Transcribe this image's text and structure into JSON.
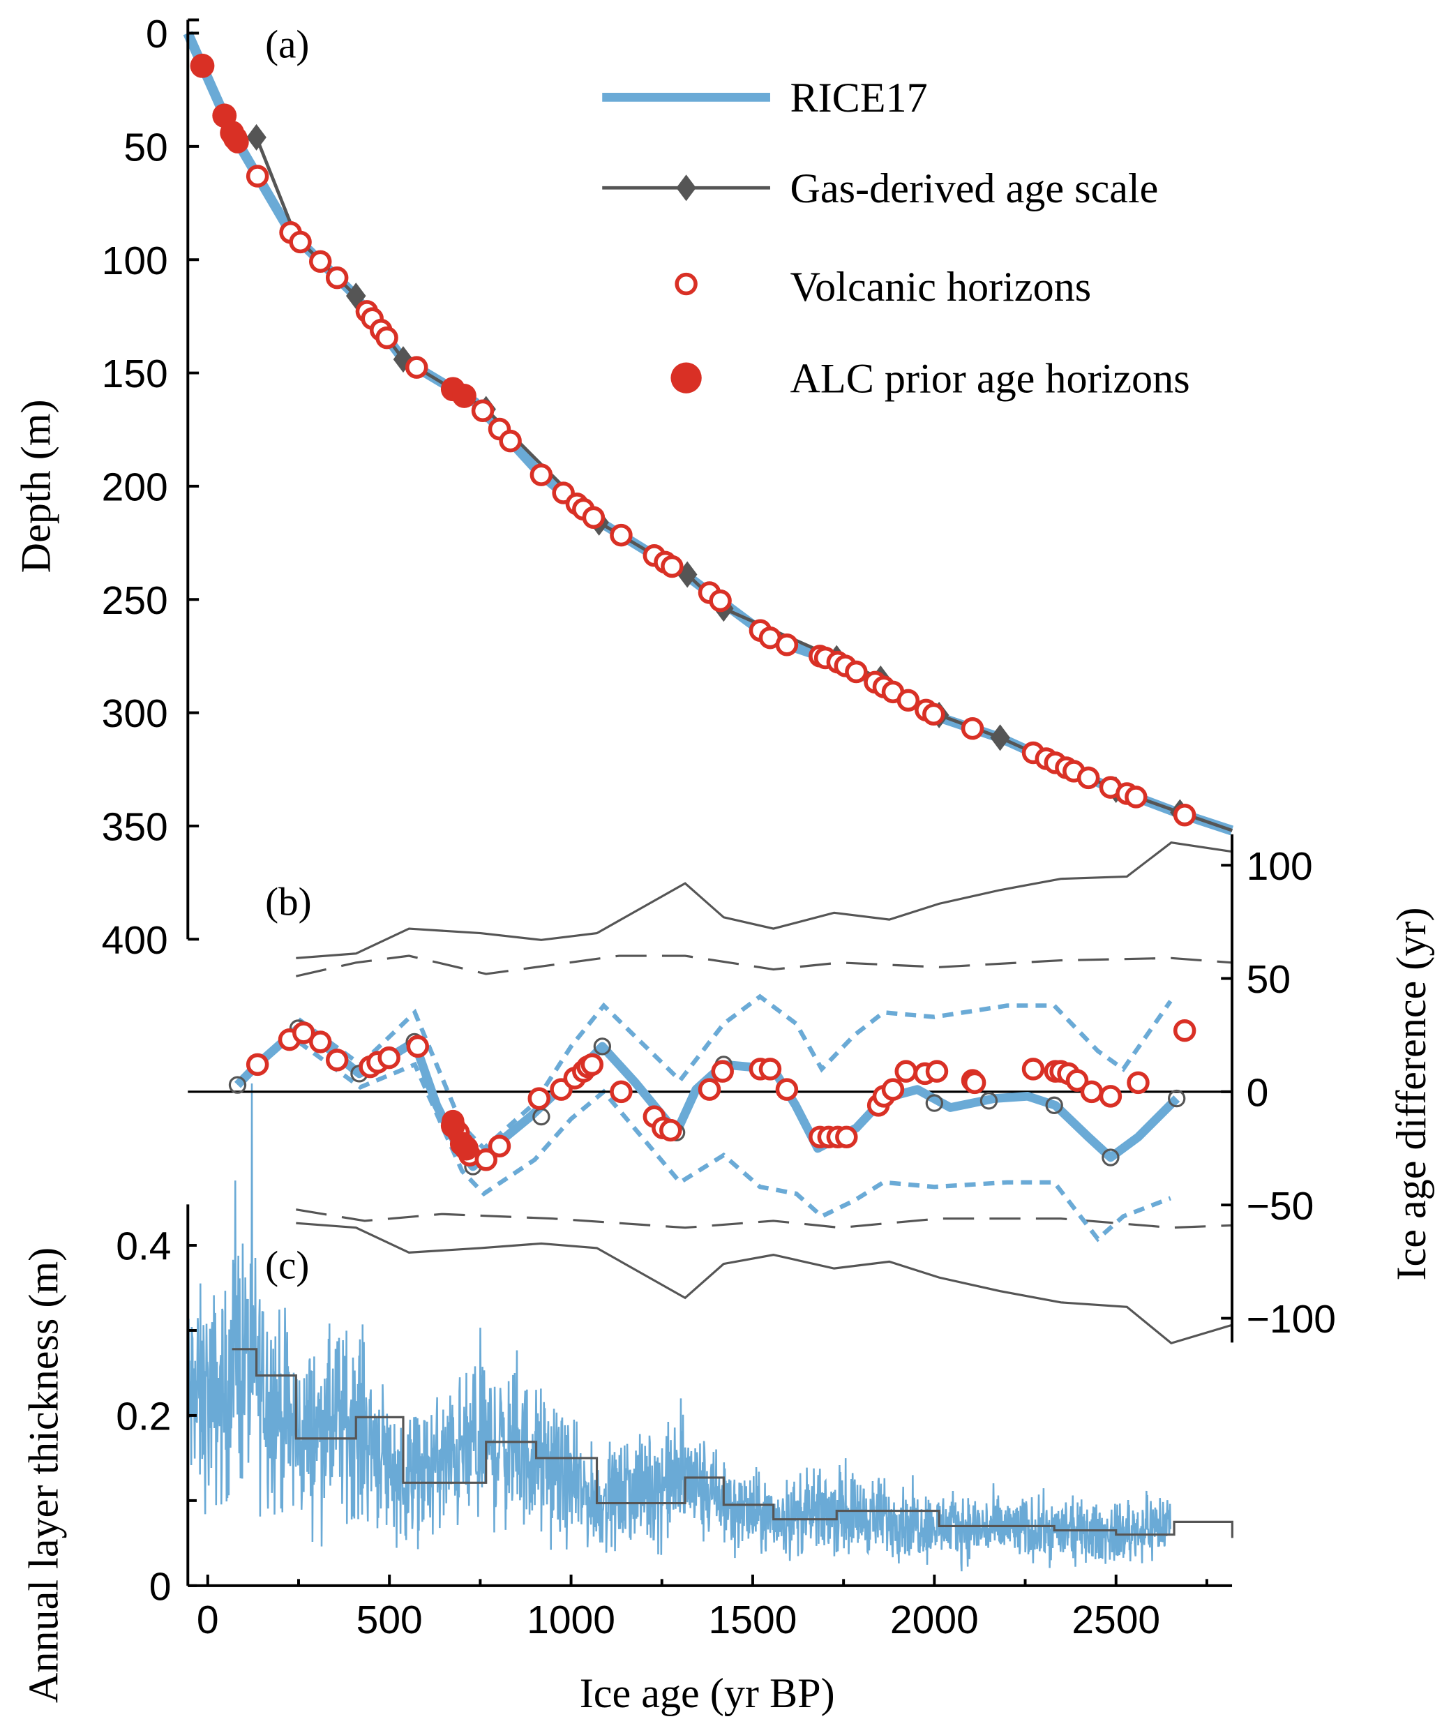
{
  "colors": {
    "rice17": "#6aaad6",
    "gas": "#555555",
    "volcanic": "#d93025",
    "alc": "#d93025",
    "axis": "#000000"
  },
  "chart_data": [
    {
      "panel": "(a)",
      "type": "line",
      "xlabel": "Ice age (yr BP)",
      "ylabel": "Depth (m)",
      "xlim": [
        -55,
        2820
      ],
      "ylim": [
        400,
        0
      ],
      "yticks": [
        0,
        50,
        100,
        150,
        200,
        250,
        300,
        350,
        400
      ],
      "xticks": [
        0,
        500,
        1000,
        1500,
        2000,
        2500
      ],
      "legend": {
        "placement": "top-right",
        "entries": [
          "RICE17",
          "Gas-derived age scale",
          "Volcanic horizons",
          "ALC prior age horizons"
        ]
      },
      "rice17": {
        "age": [
          -55,
          67,
          228,
          401,
          538,
          736,
          918,
          1071,
          1314,
          1557,
          1740,
          2013,
          2180,
          2469,
          2667,
          2819
        ],
        "depth": [
          0,
          44,
          88,
          115,
          144,
          163,
          195,
          215,
          239,
          268,
          278,
          302,
          311,
          332,
          344,
          352
        ]
      },
      "gas_derived": {
        "age": [
          134,
          243,
          408,
          538,
          766,
          1077,
          1320,
          1420,
          1731,
          1852,
          2013,
          2181,
          2500,
          2676
        ],
        "depth": [
          46,
          90,
          116,
          144,
          166,
          216,
          239,
          254,
          276,
          285,
          301,
          311,
          334,
          344
        ]
      },
      "volcanic_ages": [
        67,
        82,
        137,
        228,
        255,
        310,
        356,
        438,
        453,
        477,
        493,
        575,
        757,
        803,
        833,
        918,
        979,
        1016,
        1034,
        1062,
        1138,
        1229,
        1259,
        1278,
        1381,
        1411,
        1521,
        1548,
        1594,
        1685,
        1700,
        1734,
        1755,
        1785,
        1837,
        1861,
        1886,
        1928,
        1977,
        1998,
        2105,
        2272,
        2308,
        2333,
        2363,
        2384,
        2424,
        2485,
        2530,
        2555,
        2689
      ],
      "alc_ages": [
        -15,
        46,
        67,
        76,
        675,
        706
      ]
    },
    {
      "panel": "(b)",
      "type": "line",
      "ylabel": "Ice age difference (yr)",
      "ylim": [
        -110,
        110
      ],
      "yticks": [
        100,
        50,
        0,
        -50,
        -100
      ],
      "difference": {
        "age": [
          82,
          143,
          249,
          325,
          417,
          477,
          569,
          630,
          690,
          730,
          782,
          888,
          1001,
          1086,
          1177,
          1290,
          1344,
          1420,
          1557,
          1618,
          1679,
          1785,
          1861,
          1953,
          2044,
          2165,
          2257,
          2333,
          2424,
          2485,
          2561,
          2667
        ],
        "diff": [
          3,
          13,
          28,
          20,
          8,
          13,
          22,
          -6,
          -25,
          -33,
          -25,
          -11,
          6,
          20,
          4,
          -18,
          1,
          12,
          10,
          -6,
          -25,
          -16,
          -3,
          1,
          -7,
          -3,
          -2,
          -6,
          -20,
          -29,
          -20,
          -3
        ]
      },
      "envelope_age": [
        250,
        420,
        570,
        700,
        760,
        900,
        1000,
        1090,
        1300,
        1420,
        1520,
        1620,
        1690,
        1780,
        1860,
        2000,
        2200,
        2330,
        2450,
        2520,
        2650
      ],
      "envelope_upper": [
        32,
        12,
        35,
        -15,
        -25,
        -5,
        20,
        38,
        5,
        30,
        42,
        30,
        10,
        25,
        35,
        33,
        38,
        38,
        18,
        10,
        40
      ],
      "envelope_lower": [
        22,
        2,
        12,
        -35,
        -45,
        -30,
        -12,
        0,
        -40,
        -28,
        -42,
        -45,
        -55,
        -48,
        -40,
        -42,
        -40,
        -40,
        -65,
        -55,
        -47
      ],
      "gas_bound_age": [
        243,
        408,
        554,
        751,
        918,
        1071,
        1314,
        1420,
        1557,
        1724,
        1876,
        2013,
        2180,
        2348,
        2530,
        2652,
        2819
      ],
      "gas_bound_upper": [
        59,
        61,
        72,
        70,
        67,
        70,
        92,
        77,
        72,
        79,
        76,
        83,
        89,
        94,
        95,
        110,
        106
      ],
      "gas_bound_lower": [
        -58,
        -60,
        -71,
        -69,
        -67,
        -69,
        -91,
        -76,
        -72,
        -78,
        -75,
        -82,
        -88,
        -93,
        -95,
        -111,
        -103
      ],
      "gas_dash_upper_age": [
        243,
        408,
        554,
        766,
        949,
        1132,
        1314,
        1557,
        1740,
        2013,
        2348,
        2652,
        2819
      ],
      "gas_dash_upper": [
        51,
        57,
        60,
        52,
        56,
        60,
        60,
        54,
        57,
        55,
        58,
        59,
        57
      ],
      "gas_dash_lower_age": [
        243,
        432,
        645,
        949,
        1314,
        1557,
        1740,
        2013,
        2348,
        2652,
        2819
      ],
      "gas_dash_lower": [
        -52,
        -57,
        -54,
        -56,
        -60,
        -57,
        -60,
        -56,
        -56,
        -60,
        -59
      ],
      "gas_points": {
        "age": [
          82,
          249,
          417,
          569,
          730,
          918,
          1086,
          1290,
          1420,
          1548,
          1861,
          2000,
          2150,
          2330,
          2485,
          2667
        ],
        "diff": [
          3,
          28,
          8,
          22,
          -33,
          -11,
          20,
          -18,
          12,
          10,
          -3,
          -5,
          -4,
          -6,
          -29,
          -3
        ]
      },
      "volcanic": {
        "age": [
          137,
          225,
          264,
          310,
          356,
          447,
          468,
          499,
          578,
          675,
          690,
          721,
          766,
          803,
          912,
          973,
          1010,
          1034,
          1046,
          1058,
          1138,
          1229,
          1253,
          1274,
          1381,
          1417,
          1521,
          1548,
          1594,
          1685,
          1709,
          1734,
          1758,
          1846,
          1861,
          1886,
          1922,
          1974,
          2007,
          2105,
          2111,
          2272,
          2333,
          2348,
          2369,
          2393,
          2433,
          2485,
          2561,
          2689
        ],
        "diff": [
          12,
          23,
          26,
          22,
          14,
          11,
          13,
          15,
          20,
          -13,
          -18,
          -28,
          -30,
          -24,
          -3,
          1,
          6,
          9,
          11,
          12,
          0,
          -11,
          -16,
          -17,
          1,
          9,
          10,
          10,
          1,
          -20,
          -20,
          -20,
          -20,
          -6,
          -2,
          1,
          9,
          8,
          9,
          5,
          4,
          10,
          9,
          9,
          8,
          5,
          0,
          -2,
          4,
          27
        ]
      },
      "alc": {
        "age": [
          675,
          700,
          712
        ],
        "diff": [
          -15,
          -23,
          -25
        ]
      }
    },
    {
      "panel": "(c)",
      "type": "line",
      "ylabel": "Annual layer thickness (m)",
      "ylim": [
        0,
        0.45
      ],
      "yticks": [
        0,
        0.2,
        0.4
      ],
      "step_boundaries": [
        67,
        134,
        243,
        408,
        538,
        766,
        904,
        1071,
        1314,
        1420,
        1557,
        1731,
        2013,
        2330,
        2500,
        2660,
        2820
      ],
      "step_values": [
        0.278,
        0.247,
        0.173,
        0.198,
        0.121,
        0.169,
        0.15,
        0.097,
        0.127,
        0.095,
        0.078,
        0.088,
        0.07,
        0.065,
        0.06,
        0.075,
        0.056
      ]
    }
  ]
}
